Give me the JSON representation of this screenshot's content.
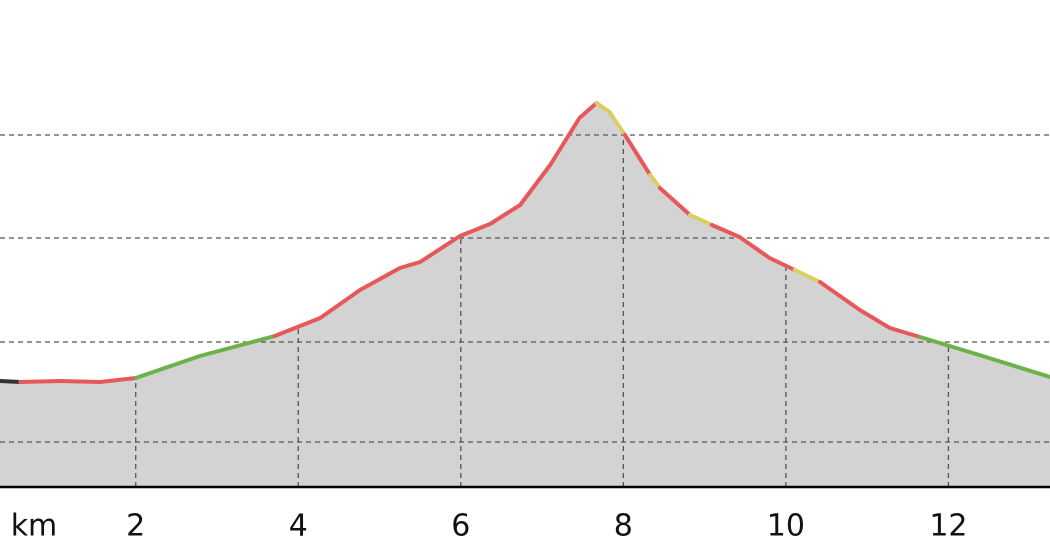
{
  "chart_data": {
    "type": "area",
    "x_unit": "km",
    "xlim": [
      0.33,
      13.25
    ],
    "xticks": [
      2,
      4,
      6,
      8,
      10,
      12
    ],
    "ylim": [
      0,
      487
    ],
    "ygrid": [
      45,
      145,
      249,
      352
    ],
    "area_color": "#d3d3d3",
    "series": [
      {
        "color": "#333333",
        "x": [
          0.33,
          0.58
        ],
        "values": [
          106,
          105
        ]
      },
      {
        "color": "#e8585a",
        "x": [
          0.58,
          1.07,
          1.56,
          2.0
        ],
        "values": [
          105,
          106,
          105,
          109
        ]
      },
      {
        "color": "#6cb24a",
        "x": [
          2.0,
          2.79,
          3.71
        ],
        "values": [
          109,
          131,
          151
        ]
      },
      {
        "color": "#e8585a",
        "x": [
          3.71,
          4.27,
          4.76,
          5.25,
          5.5,
          5.99,
          6.36,
          6.73,
          7.1,
          7.46,
          7.67
        ],
        "values": [
          151,
          169,
          197,
          219,
          225,
          251,
          263,
          282,
          322,
          369,
          384
        ]
      },
      {
        "color": "#d8cf63",
        "x": [
          7.67,
          7.83,
          8.02
        ],
        "values": [
          384,
          375,
          352
        ]
      },
      {
        "color": "#e8585a",
        "x": [
          8.02,
          8.33
        ],
        "values": [
          352,
          312
        ]
      },
      {
        "color": "#d8cf63",
        "x": [
          8.33,
          8.45
        ],
        "values": [
          312,
          299
        ]
      },
      {
        "color": "#e8585a",
        "x": [
          8.45,
          8.82
        ],
        "values": [
          299,
          272
        ]
      },
      {
        "color": "#d8cf63",
        "x": [
          8.82,
          9.09
        ],
        "values": [
          272,
          262
        ]
      },
      {
        "color": "#e8585a",
        "x": [
          9.09,
          9.43,
          9.8,
          10.11
        ],
        "values": [
          262,
          250,
          229,
          217
        ]
      },
      {
        "color": "#d8cf63",
        "x": [
          10.11,
          10.42
        ],
        "values": [
          217,
          205
        ]
      },
      {
        "color": "#e8585a",
        "x": [
          10.42,
          10.91,
          11.28,
          11.65
        ],
        "values": [
          205,
          177,
          159,
          150
        ]
      },
      {
        "color": "#6cb24a",
        "x": [
          11.65,
          12.38,
          13.25
        ],
        "values": [
          150,
          132,
          110
        ]
      }
    ]
  }
}
